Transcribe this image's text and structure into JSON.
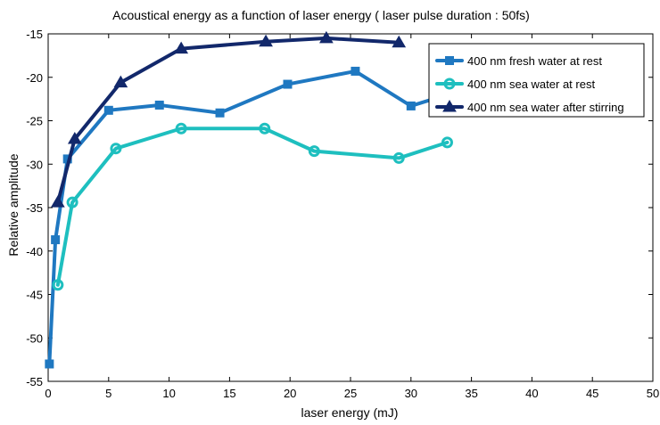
{
  "chart_data": {
    "type": "line",
    "title": "Acoustical energy as a function of laser energy ( laser pulse duration : 50fs)",
    "xlabel": "laser energy (mJ)",
    "ylabel": "Relative amplitude",
    "xlim": [
      0,
      50
    ],
    "ylim": [
      -55,
      -15
    ],
    "xticks": [
      0,
      5,
      10,
      15,
      20,
      25,
      30,
      35,
      40,
      45,
      50
    ],
    "yticks": [
      -55,
      -50,
      -45,
      -40,
      -35,
      -30,
      -25,
      -20,
      -15
    ],
    "xtick_labels": [
      "0",
      "5",
      "10",
      "15",
      "20",
      "25",
      "30",
      "35",
      "40",
      "45",
      "50"
    ],
    "ytick_labels": [
      "-55",
      "-50",
      "-45",
      "-40",
      "-35",
      "-30",
      "-25",
      "-20",
      "-15"
    ],
    "grid": false,
    "legend_position": "top-right",
    "series": [
      {
        "name": "400 nm fresh water at rest",
        "color": "#1f78c1",
        "marker": "square",
        "x": [
          0.1,
          0.6,
          1.6,
          5.0,
          9.2,
          14.2,
          19.8,
          25.4,
          30.0,
          33.0
        ],
        "y": [
          -53.0,
          -38.7,
          -29.4,
          -23.8,
          -23.2,
          -24.1,
          -20.8,
          -19.3,
          -23.3,
          -22.0
        ]
      },
      {
        "name": "400 nm sea water at rest",
        "color": "#1ebfbf",
        "marker": "circle",
        "x": [
          0.8,
          2.0,
          5.6,
          11.0,
          17.9,
          22.0,
          29.0,
          33.0
        ],
        "y": [
          -43.9,
          -34.4,
          -28.2,
          -25.9,
          -25.9,
          -28.5,
          -29.3,
          -27.5
        ]
      },
      {
        "name": "400 nm sea water after stirring",
        "color": "#12286b",
        "marker": "triangle",
        "x": [
          0.8,
          2.2,
          6.0,
          11.0,
          18.0,
          23.0,
          29.0
        ],
        "y": [
          -34.4,
          -27.1,
          -20.6,
          -16.7,
          -15.9,
          -15.5,
          -16.0
        ]
      }
    ]
  }
}
